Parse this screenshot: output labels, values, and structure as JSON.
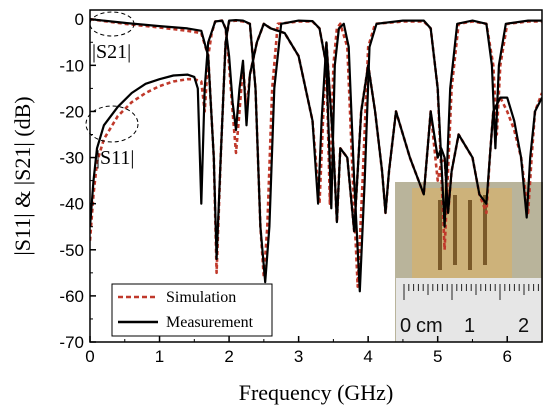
{
  "chart_data": {
    "type": "line",
    "xlabel": "Frequency (GHz)",
    "ylabel": "|S11| & |S21| (dB)",
    "xlim": [
      0,
      6.5
    ],
    "ylim": [
      -70,
      2
    ],
    "xticks": [
      0,
      1,
      2,
      3,
      4,
      5,
      6
    ],
    "yticks": [
      0,
      -10,
      -20,
      -30,
      -40,
      -50,
      -60,
      -70
    ],
    "grid": false,
    "legend_position": "bottom-left",
    "annotations": {
      "s21": "|S21|",
      "s11": "|S11|"
    },
    "inset": {
      "description": "photo of fabricated filter on ruler",
      "ruler_labels": [
        "0",
        "cm",
        "1",
        "2"
      ]
    },
    "series": [
      {
        "name": "Simulation",
        "color": "#c0392b",
        "style": "dashed",
        "s21": [
          [
            0,
            0
          ],
          [
            0.5,
            -1
          ],
          [
            1.0,
            -1.8
          ],
          [
            1.4,
            -2.5
          ],
          [
            1.6,
            -3
          ],
          [
            1.7,
            -8
          ],
          [
            1.78,
            -30
          ],
          [
            1.82,
            -55
          ],
          [
            1.88,
            -30
          ],
          [
            1.95,
            -5
          ],
          [
            2.0,
            -0.5
          ],
          [
            2.1,
            -0.3
          ],
          [
            2.2,
            -0.5
          ],
          [
            2.3,
            -1
          ],
          [
            2.38,
            -15
          ],
          [
            2.45,
            -45
          ],
          [
            2.5,
            -56
          ],
          [
            2.55,
            -45
          ],
          [
            2.62,
            -15
          ],
          [
            2.7,
            -1
          ],
          [
            3.0,
            -0.5
          ],
          [
            3.2,
            -0.5
          ],
          [
            3.3,
            -2
          ],
          [
            3.4,
            -10
          ],
          [
            3.45,
            -40
          ],
          [
            3.5,
            -10
          ],
          [
            3.55,
            -2
          ],
          [
            3.6,
            -1
          ],
          [
            3.7,
            -6
          ],
          [
            3.78,
            -35
          ],
          [
            3.85,
            -58
          ],
          [
            3.92,
            -35
          ],
          [
            4.0,
            -6
          ],
          [
            4.1,
            -1
          ],
          [
            4.5,
            -0.5
          ],
          [
            4.8,
            -0.5
          ],
          [
            4.9,
            -2
          ],
          [
            5.0,
            -15
          ],
          [
            5.1,
            -50
          ],
          [
            5.2,
            -15
          ],
          [
            5.3,
            -1
          ],
          [
            5.5,
            -0.5
          ],
          [
            5.7,
            -1
          ],
          [
            5.8,
            -10
          ],
          [
            5.85,
            -25
          ],
          [
            5.9,
            -10
          ],
          [
            6.0,
            -1
          ],
          [
            6.3,
            -0.5
          ],
          [
            6.5,
            -0.5
          ]
        ],
        "s11": [
          [
            0,
            -48
          ],
          [
            0.05,
            -38
          ],
          [
            0.1,
            -31
          ],
          [
            0.2,
            -26
          ],
          [
            0.4,
            -21
          ],
          [
            0.6,
            -18
          ],
          [
            0.8,
            -16
          ],
          [
            1.0,
            -14.5
          ],
          [
            1.2,
            -13.5
          ],
          [
            1.4,
            -13
          ],
          [
            1.5,
            -13
          ],
          [
            1.6,
            -13.5
          ],
          [
            1.65,
            -20
          ],
          [
            1.7,
            -8
          ],
          [
            1.75,
            -3
          ],
          [
            1.8,
            -0.5
          ],
          [
            1.9,
            -0.3
          ],
          [
            1.95,
            -2
          ],
          [
            2.0,
            -10
          ],
          [
            2.05,
            -20
          ],
          [
            2.1,
            -29
          ],
          [
            2.15,
            -20
          ],
          [
            2.2,
            -10
          ],
          [
            2.25,
            -20
          ],
          [
            2.3,
            -12
          ],
          [
            2.4,
            -5
          ],
          [
            2.5,
            -1
          ],
          [
            2.6,
            -2
          ],
          [
            2.8,
            -3
          ],
          [
            3.0,
            -8
          ],
          [
            3.2,
            -22
          ],
          [
            3.3,
            -40
          ],
          [
            3.35,
            -22
          ],
          [
            3.4,
            -5
          ],
          [
            3.5,
            -28
          ],
          [
            3.55,
            -44
          ],
          [
            3.6,
            -28
          ],
          [
            3.7,
            -30
          ],
          [
            3.8,
            -46
          ],
          [
            3.9,
            -20
          ],
          [
            4.0,
            -10
          ],
          [
            4.1,
            -20
          ],
          [
            4.2,
            -33
          ],
          [
            4.25,
            -42
          ],
          [
            4.3,
            -33
          ],
          [
            4.4,
            -20
          ],
          [
            4.6,
            -30
          ],
          [
            4.8,
            -38
          ],
          [
            4.9,
            -20
          ],
          [
            5.0,
            -35
          ],
          [
            5.05,
            -31
          ],
          [
            5.1,
            -30
          ],
          [
            5.15,
            -42
          ],
          [
            5.2,
            -33
          ],
          [
            5.3,
            -25
          ],
          [
            5.5,
            -30
          ],
          [
            5.6,
            -38
          ],
          [
            5.7,
            -42
          ],
          [
            5.75,
            -30
          ],
          [
            5.8,
            -20
          ],
          [
            5.9,
            -17
          ],
          [
            6.0,
            -20
          ],
          [
            6.1,
            -24
          ],
          [
            6.2,
            -30
          ],
          [
            6.3,
            -42
          ],
          [
            6.35,
            -30
          ],
          [
            6.4,
            -20
          ],
          [
            6.5,
            -16
          ]
        ]
      },
      {
        "name": "Measurement",
        "color": "#000000",
        "style": "solid",
        "s21": [
          [
            0,
            0
          ],
          [
            0.5,
            -0.8
          ],
          [
            1.0,
            -1.5
          ],
          [
            1.4,
            -2
          ],
          [
            1.6,
            -2.5
          ],
          [
            1.7,
            -8
          ],
          [
            1.78,
            -30
          ],
          [
            1.82,
            -52
          ],
          [
            1.88,
            -30
          ],
          [
            1.95,
            -5
          ],
          [
            2.0,
            -0.3
          ],
          [
            2.1,
            -0.2
          ],
          [
            2.2,
            -0.3
          ],
          [
            2.3,
            -1
          ],
          [
            2.38,
            -15
          ],
          [
            2.45,
            -45
          ],
          [
            2.52,
            -57
          ],
          [
            2.58,
            -45
          ],
          [
            2.65,
            -15
          ],
          [
            2.75,
            -1
          ],
          [
            3.0,
            -0.3
          ],
          [
            3.2,
            -0.4
          ],
          [
            3.3,
            -2
          ],
          [
            3.4,
            -10
          ],
          [
            3.47,
            -41
          ],
          [
            3.52,
            -10
          ],
          [
            3.58,
            -2
          ],
          [
            3.65,
            -1
          ],
          [
            3.72,
            -6
          ],
          [
            3.8,
            -35
          ],
          [
            3.88,
            -59
          ],
          [
            3.95,
            -35
          ],
          [
            4.02,
            -6
          ],
          [
            4.12,
            -1
          ],
          [
            4.5,
            -0.3
          ],
          [
            4.8,
            -0.3
          ],
          [
            4.9,
            -2
          ],
          [
            5.0,
            -15
          ],
          [
            5.1,
            -45
          ],
          [
            5.18,
            -15
          ],
          [
            5.28,
            -1
          ],
          [
            5.5,
            -0.3
          ],
          [
            5.7,
            -1
          ],
          [
            5.78,
            -10
          ],
          [
            5.83,
            -28
          ],
          [
            5.88,
            -10
          ],
          [
            5.98,
            -1
          ],
          [
            6.3,
            -0.3
          ],
          [
            6.5,
            -0.3
          ]
        ],
        "s11": [
          [
            0,
            -45
          ],
          [
            0.05,
            -35
          ],
          [
            0.1,
            -28
          ],
          [
            0.2,
            -23
          ],
          [
            0.4,
            -19
          ],
          [
            0.6,
            -16
          ],
          [
            0.8,
            -14
          ],
          [
            1.0,
            -13
          ],
          [
            1.2,
            -12.2
          ],
          [
            1.4,
            -12
          ],
          [
            1.5,
            -12.5
          ],
          [
            1.55,
            -15
          ],
          [
            1.6,
            -40
          ],
          [
            1.65,
            -15
          ],
          [
            1.7,
            -5
          ],
          [
            1.8,
            -0.5
          ],
          [
            1.9,
            -0.3
          ],
          [
            1.95,
            -2
          ],
          [
            2.0,
            -8
          ],
          [
            2.05,
            -18
          ],
          [
            2.1,
            -24
          ],
          [
            2.15,
            -15
          ],
          [
            2.2,
            -9
          ],
          [
            2.25,
            -23
          ],
          [
            2.3,
            -12
          ],
          [
            2.4,
            -5
          ],
          [
            2.5,
            -1
          ],
          [
            2.6,
            -2
          ],
          [
            2.8,
            -3
          ],
          [
            3.0,
            -8
          ],
          [
            3.2,
            -22
          ],
          [
            3.28,
            -40
          ],
          [
            3.33,
            -22
          ],
          [
            3.4,
            -5
          ],
          [
            3.5,
            -28
          ],
          [
            3.55,
            -44
          ],
          [
            3.6,
            -28
          ],
          [
            3.7,
            -30
          ],
          [
            3.8,
            -46
          ],
          [
            3.9,
            -20
          ],
          [
            4.0,
            -10
          ],
          [
            4.1,
            -20
          ],
          [
            4.2,
            -33
          ],
          [
            4.25,
            -42
          ],
          [
            4.3,
            -33
          ],
          [
            4.4,
            -20
          ],
          [
            4.6,
            -30
          ],
          [
            4.8,
            -38
          ],
          [
            4.9,
            -20
          ],
          [
            5.0,
            -30
          ],
          [
            5.05,
            -28
          ],
          [
            5.1,
            -30
          ],
          [
            5.15,
            -42
          ],
          [
            5.2,
            -33
          ],
          [
            5.3,
            -25
          ],
          [
            5.5,
            -30
          ],
          [
            5.6,
            -38
          ],
          [
            5.7,
            -40
          ],
          [
            5.75,
            -30
          ],
          [
            5.8,
            -20
          ],
          [
            5.9,
            -17
          ],
          [
            6.0,
            -17
          ],
          [
            6.1,
            -22
          ],
          [
            6.2,
            -30
          ],
          [
            6.28,
            -43
          ],
          [
            6.33,
            -30
          ],
          [
            6.4,
            -20
          ],
          [
            6.5,
            -17
          ]
        ]
      }
    ]
  }
}
